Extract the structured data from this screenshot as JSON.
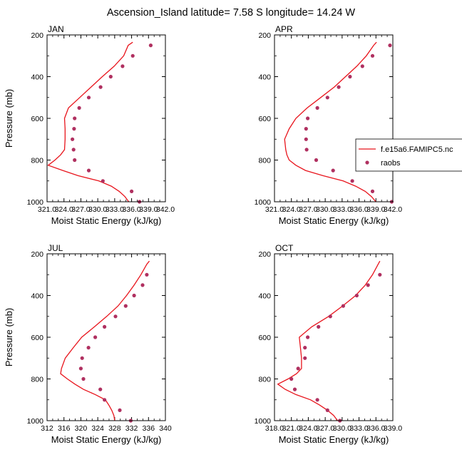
{
  "title": "Ascension_Island  latitude= 7.58 S longitude= 14.24 W",
  "colors": {
    "model": "#e8141c",
    "raobs": "#b03060"
  },
  "legend": {
    "model_label": "f.e15a6.FAMIPC5.nc",
    "obs_label": "raobs"
  },
  "chart_data": [
    {
      "type": "line",
      "panel_label": "JAN",
      "xlabel": "Moist Static Energy (kJ/kg)",
      "ylabel": "Pressure (mb)",
      "xlim": [
        321,
        342
      ],
      "ylim": [
        1000,
        200
      ],
      "xticks": [
        "321.0",
        "324.0",
        "327.0",
        "330.0",
        "333.0",
        "336.0",
        "339.0",
        "342.0"
      ],
      "yticks": [
        "200",
        "400",
        "600",
        "800",
        "1000"
      ],
      "series": [
        {
          "pressure": [
            1000,
            975,
            950,
            925,
            900,
            875,
            850,
            825,
            800,
            775,
            750,
            700,
            650,
            600,
            550,
            500,
            450,
            400,
            350,
            300,
            250,
            235
          ],
          "mse": [
            335.5,
            334.8,
            333.8,
            332.4,
            330.2,
            326.5,
            323.8,
            321.2,
            322.4,
            323.4,
            324.1,
            324.2,
            324.2,
            324.1,
            324.8,
            326.8,
            328.8,
            330.8,
            332.9,
            334.6,
            335.4,
            336.2
          ]
        },
        {
          "pressure": [
            1000,
            950,
            900,
            850,
            800,
            750,
            700,
            650,
            600,
            550,
            500,
            450,
            400,
            350,
            300,
            250
          ],
          "mse": [
            337.4,
            336.0,
            330.9,
            328.4,
            325.9,
            325.7,
            325.5,
            325.8,
            325.9,
            326.7,
            328.4,
            330.5,
            332.3,
            334.4,
            336.2,
            339.4
          ]
        }
      ]
    },
    {
      "type": "line",
      "panel_label": "APR",
      "xlabel": "Moist Static Energy (kJ/kg)",
      "ylabel": "",
      "xlim": [
        321,
        342
      ],
      "ylim": [
        1000,
        200
      ],
      "xticks": [
        "321.0",
        "324.0",
        "327.0",
        "330.0",
        "333.0",
        "336.0",
        "339.0",
        "342.0"
      ],
      "yticks": [
        "200",
        "400",
        "600",
        "800",
        "1000"
      ],
      "series": [
        {
          "pressure": [
            1000,
            975,
            950,
            925,
            900,
            875,
            850,
            825,
            800,
            775,
            750,
            700,
            650,
            600,
            550,
            500,
            450,
            400,
            350,
            300,
            250,
            235
          ],
          "mse": [
            339.0,
            338.2,
            337.1,
            335.4,
            333.2,
            329.6,
            326.5,
            324.8,
            323.6,
            323.2,
            323.0,
            322.8,
            323.6,
            324.8,
            326.8,
            329.2,
            331.6,
            333.6,
            335.6,
            337.3,
            338.6,
            339.1
          ]
        },
        {
          "pressure": [
            1000,
            950,
            900,
            850,
            800,
            750,
            700,
            650,
            600,
            550,
            500,
            450,
            400,
            350,
            300,
            250
          ],
          "mse": [
            341.8,
            338.4,
            334.8,
            331.4,
            328.4,
            326.7,
            326.6,
            326.6,
            326.9,
            328.6,
            330.4,
            332.4,
            334.4,
            336.6,
            338.4,
            341.5
          ]
        }
      ]
    },
    {
      "type": "line",
      "panel_label": "JUL",
      "xlabel": "Moist Static Energy (kJ/kg)",
      "ylabel": "Pressure (mb)",
      "xlim": [
        312,
        340
      ],
      "ylim": [
        1000,
        200
      ],
      "xticks": [
        "312",
        "316",
        "320",
        "324",
        "328",
        "332",
        "336",
        "340"
      ],
      "yticks": [
        "200",
        "400",
        "600",
        "800",
        "1000"
      ],
      "series": [
        {
          "pressure": [
            1000,
            975,
            950,
            925,
            900,
            875,
            850,
            825,
            800,
            775,
            750,
            700,
            650,
            600,
            550,
            500,
            450,
            400,
            350,
            300,
            250,
            235
          ],
          "mse": [
            328.0,
            327.8,
            327.3,
            326.6,
            325.8,
            323.4,
            320.6,
            318.6,
            316.8,
            315.2,
            315.4,
            316.3,
            318.2,
            320.2,
            323.2,
            326.1,
            328.8,
            330.8,
            332.6,
            334.2,
            335.6,
            336.2
          ]
        },
        {
          "pressure": [
            1000,
            950,
            900,
            850,
            800,
            750,
            700,
            650,
            600,
            550,
            500,
            450,
            400,
            350,
            300
          ],
          "mse": [
            331.8,
            329.2,
            325.6,
            324.6,
            320.6,
            320.0,
            320.3,
            321.8,
            323.4,
            325.6,
            328.2,
            330.6,
            332.6,
            334.6,
            335.6
          ]
        }
      ]
    },
    {
      "type": "line",
      "panel_label": "OCT",
      "xlabel": "Moist Static Energy (kJ/kg)",
      "ylabel": "",
      "xlim": [
        318,
        339
      ],
      "ylim": [
        1000,
        200
      ],
      "xticks": [
        "318.0",
        "321.0",
        "324.0",
        "327.0",
        "330.0",
        "333.0",
        "336.0",
        "339.0"
      ],
      "yticks": [
        "200",
        "400",
        "600",
        "800",
        "1000"
      ],
      "series": [
        {
          "pressure": [
            1000,
            975,
            950,
            925,
            900,
            875,
            850,
            825,
            800,
            775,
            750,
            700,
            650,
            600,
            550,
            500,
            450,
            400,
            350,
            300,
            250,
            235
          ],
          "mse": [
            329.2,
            328.5,
            327.4,
            326.0,
            324.4,
            321.8,
            319.9,
            318.6,
            320.4,
            321.9,
            322.8,
            322.8,
            322.6,
            322.4,
            324.6,
            327.6,
            330.1,
            332.4,
            334.1,
            335.4,
            336.4,
            336.7
          ]
        },
        {
          "pressure": [
            1000,
            950,
            900,
            850,
            800,
            750,
            700,
            650,
            600,
            550,
            500,
            450,
            400,
            350,
            300
          ],
          "mse": [
            329.6,
            327.4,
            325.6,
            321.6,
            321.0,
            322.2,
            323.4,
            323.4,
            323.9,
            325.8,
            327.9,
            330.2,
            332.6,
            334.6,
            336.7
          ]
        }
      ]
    }
  ]
}
